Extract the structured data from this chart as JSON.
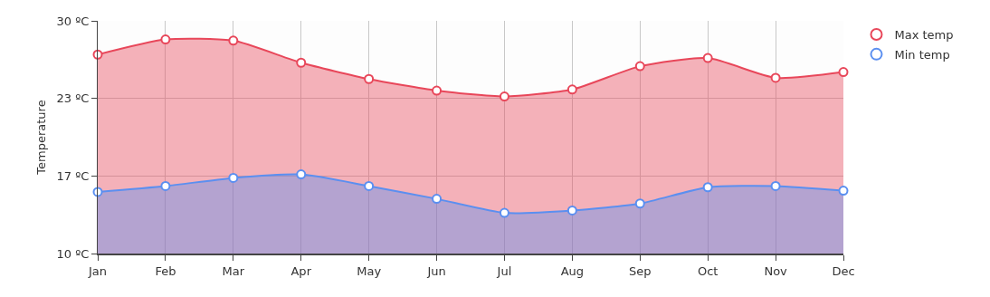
{
  "chart_data": {
    "type": "area",
    "ylabel": "Temperature",
    "categories": [
      "Jan",
      "Feb",
      "Mar",
      "Apr",
      "May",
      "Jun",
      "Jul",
      "Aug",
      "Sep",
      "Oct",
      "Nov",
      "Dec"
    ],
    "series": [
      {
        "name": "Max temp",
        "color": "#e8475a",
        "values": [
          27.1,
          28.4,
          28.3,
          26.4,
          25.0,
          24.0,
          23.5,
          24.1,
          26.1,
          26.8,
          25.1,
          25.6
        ]
      },
      {
        "name": "Min temp",
        "color": "#5b8ff0",
        "values": [
          15.3,
          15.8,
          16.5,
          16.8,
          15.8,
          14.7,
          13.5,
          13.7,
          14.3,
          15.7,
          15.8,
          15.4
        ]
      }
    ],
    "ylim": [
      10,
      30
    ],
    "yticks": [
      {
        "value": 10,
        "label": "10 ºC"
      },
      {
        "value": 16.67,
        "label": "17 ºC"
      },
      {
        "value": 23.33,
        "label": "23 ºC"
      },
      {
        "value": 30,
        "label": "30 ºC"
      }
    ],
    "grid": true,
    "legend": "top right",
    "marker": "circle",
    "line_style": "solid"
  }
}
